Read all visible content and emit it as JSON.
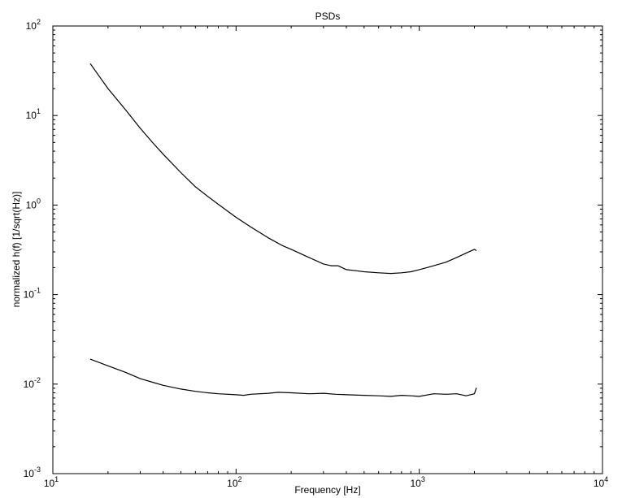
{
  "chart_data": {
    "type": "line",
    "title": "PSDs",
    "xlabel": "Frequency [Hz]",
    "ylabel": "normalized h(f) [1/sqrt(Hz)]",
    "xscale": "log",
    "yscale": "log",
    "xlim": [
      10,
      10000
    ],
    "ylim": [
      0.001,
      100
    ],
    "grid": false,
    "legend": "none",
    "x_ticks": [
      {
        "value": 10,
        "base": "10",
        "exp": "1"
      },
      {
        "value": 100,
        "base": "10",
        "exp": "2"
      },
      {
        "value": 1000,
        "base": "10",
        "exp": "3"
      },
      {
        "value": 10000,
        "base": "10",
        "exp": "4"
      }
    ],
    "y_ticks": [
      {
        "value": 0.001,
        "base": "10",
        "exp": "-3"
      },
      {
        "value": 0.01,
        "base": "10",
        "exp": "-2"
      },
      {
        "value": 0.1,
        "base": "10",
        "exp": "-1"
      },
      {
        "value": 1,
        "base": "10",
        "exp": "0"
      },
      {
        "value": 10,
        "base": "10",
        "exp": "1"
      },
      {
        "value": 100,
        "base": "10",
        "exp": "2"
      }
    ],
    "series": [
      {
        "color": "#000000",
        "x": [
          16,
          20,
          25,
          30,
          35,
          40,
          50,
          60,
          70,
          80,
          100,
          120,
          150,
          180,
          200,
          250,
          300,
          330,
          360,
          400,
          450,
          500,
          600,
          700,
          800,
          900,
          1000,
          1100,
          1200,
          1400,
          1600,
          1800,
          2000,
          2050
        ],
        "y": [
          38,
          20,
          11.5,
          7.2,
          5.0,
          3.7,
          2.3,
          1.6,
          1.25,
          1.02,
          0.73,
          0.57,
          0.43,
          0.35,
          0.32,
          0.26,
          0.22,
          0.21,
          0.21,
          0.19,
          0.185,
          0.18,
          0.175,
          0.172,
          0.175,
          0.18,
          0.19,
          0.2,
          0.21,
          0.23,
          0.26,
          0.29,
          0.32,
          0.31
        ]
      },
      {
        "color": "#000000",
        "x": [
          16,
          20,
          25,
          30,
          35,
          40,
          50,
          60,
          70,
          80,
          100,
          110,
          120,
          150,
          170,
          200,
          250,
          300,
          350,
          400,
          500,
          600,
          700,
          800,
          900,
          1000,
          1200,
          1400,
          1600,
          1800,
          2000,
          2050
        ],
        "y": [
          0.019,
          0.016,
          0.0135,
          0.0115,
          0.0105,
          0.0097,
          0.0088,
          0.0083,
          0.008,
          0.0078,
          0.0076,
          0.0075,
          0.0077,
          0.0079,
          0.0081,
          0.008,
          0.0078,
          0.0079,
          0.0077,
          0.0076,
          0.0075,
          0.0074,
          0.0073,
          0.0075,
          0.0074,
          0.0073,
          0.0078,
          0.0077,
          0.0078,
          0.0074,
          0.0078,
          0.0091
        ]
      }
    ]
  }
}
